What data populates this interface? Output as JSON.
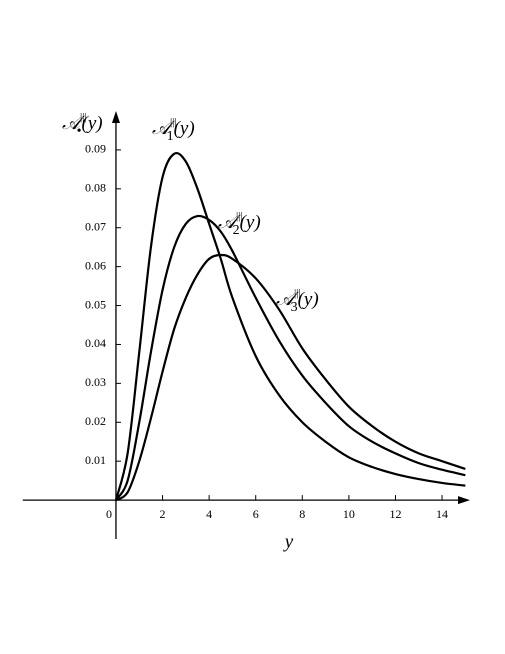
{
  "chart_data": {
    "type": "line",
    "y_label": {
      "symbol": "𝒜",
      "sup": "|||",
      "sub": "•",
      "arg": "(y)"
    },
    "x_label": "y",
    "x": [
      0,
      0.5,
      1,
      1.5,
      2,
      2.5,
      3,
      3.5,
      4,
      4.5,
      5,
      6,
      7,
      8,
      9,
      10,
      11,
      12,
      13,
      14,
      15
    ],
    "series": [
      {
        "label": {
          "symbol": "𝒜",
          "sup": "|||",
          "sub": "1",
          "arg": "(y)"
        },
        "color": "#000000",
        "values": [
          0,
          0.012,
          0.038,
          0.065,
          0.083,
          0.089,
          0.087,
          0.08,
          0.071,
          0.062,
          0.052,
          0.037,
          0.027,
          0.02,
          0.015,
          0.011,
          0.0085,
          0.0067,
          0.0054,
          0.0044,
          0.0037
        ]
      },
      {
        "label": {
          "symbol": "𝒜",
          "sup": "|||",
          "sub": "2",
          "arg": "(y)"
        },
        "color": "#000000",
        "values": [
          0,
          0.005,
          0.02,
          0.038,
          0.054,
          0.065,
          0.071,
          0.073,
          0.072,
          0.069,
          0.064,
          0.052,
          0.041,
          0.032,
          0.025,
          0.019,
          0.015,
          0.012,
          0.0095,
          0.0078,
          0.0064
        ]
      },
      {
        "label": {
          "symbol": "𝒜",
          "sup": "|||",
          "sub": "3",
          "arg": "(y)"
        },
        "color": "#000000",
        "values": [
          0,
          0.002,
          0.01,
          0.021,
          0.033,
          0.044,
          0.052,
          0.058,
          0.062,
          0.063,
          0.062,
          0.057,
          0.049,
          0.039,
          0.031,
          0.024,
          0.019,
          0.015,
          0.012,
          0.01,
          0.008
        ]
      }
    ],
    "xlim": [
      -4,
      15.2
    ],
    "ylim": [
      -0.01,
      0.1
    ],
    "xticks": [
      0,
      2,
      4,
      6,
      8,
      10,
      12,
      14
    ],
    "yticks": [
      0.01,
      0.02,
      0.03,
      0.04,
      0.05,
      0.06,
      0.07,
      0.08,
      0.09
    ]
  }
}
